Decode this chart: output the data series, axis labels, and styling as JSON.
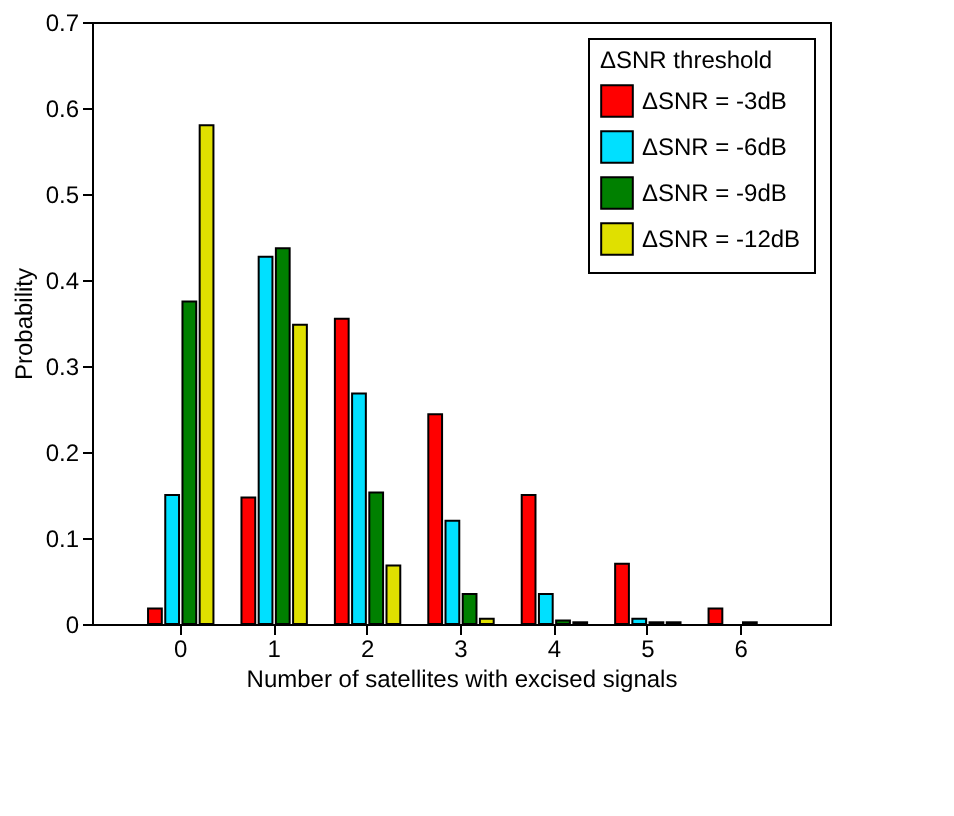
{
  "chart_data": {
    "type": "bar",
    "xlabel": "Number of satellites with excised signals",
    "ylabel": "Probability",
    "legend_title": "ΔSNR threshold",
    "categories": [
      "0",
      "1",
      "2",
      "3",
      "4",
      "5",
      "6"
    ],
    "series": [
      {
        "name": "ΔSNR = -3dB",
        "color": "#ff0000",
        "values": [
          0.018,
          0.147,
          0.355,
          0.244,
          0.15,
          0.07,
          0.018
        ]
      },
      {
        "name": "ΔSNR = -6dB",
        "color": "#00e0ff",
        "values": [
          0.15,
          0.427,
          0.268,
          0.12,
          0.035,
          0.006,
          null
        ]
      },
      {
        "name": "ΔSNR = -9dB",
        "color": "#008000",
        "values": [
          0.375,
          0.437,
          0.153,
          0.035,
          0.004,
          0.002,
          0.002
        ]
      },
      {
        "name": "ΔSNR = -12dB",
        "color": "#e0e000",
        "values": [
          0.58,
          0.348,
          0.068,
          0.006,
          0.002,
          0.002,
          null
        ]
      }
    ],
    "ylim": [
      0,
      0.7
    ],
    "yticks": [
      0,
      0.1,
      0.2,
      0.3,
      0.4,
      0.5,
      0.6,
      0.7
    ],
    "grid": false,
    "legend": "top right"
  }
}
